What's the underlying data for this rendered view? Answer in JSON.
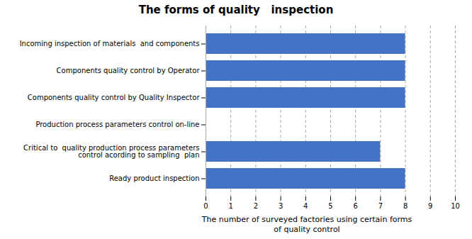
{
  "chart_data": {
    "type": "bar",
    "orientation": "horizontal",
    "title": "The forms of quality   inspection",
    "categories": [
      "Ready product inspection",
      "Critical to  quality production process parameters\ncontrol acording to sampling  plan",
      "Production process parameters control on-line",
      "Components quality control by Quality Inspector",
      "Components quality control by Operator",
      "Incoming inspection of materials  and components"
    ],
    "values": [
      8,
      7,
      0,
      8,
      8,
      8
    ],
    "color": "#4472C4",
    "xlabel": "The number of surveyed factories using certain forms\nof quality control",
    "xlim": [
      0,
      10
    ],
    "xticks": [
      0,
      1,
      2,
      3,
      4,
      5,
      6,
      7,
      8,
      9,
      10
    ],
    "grid": true
  }
}
